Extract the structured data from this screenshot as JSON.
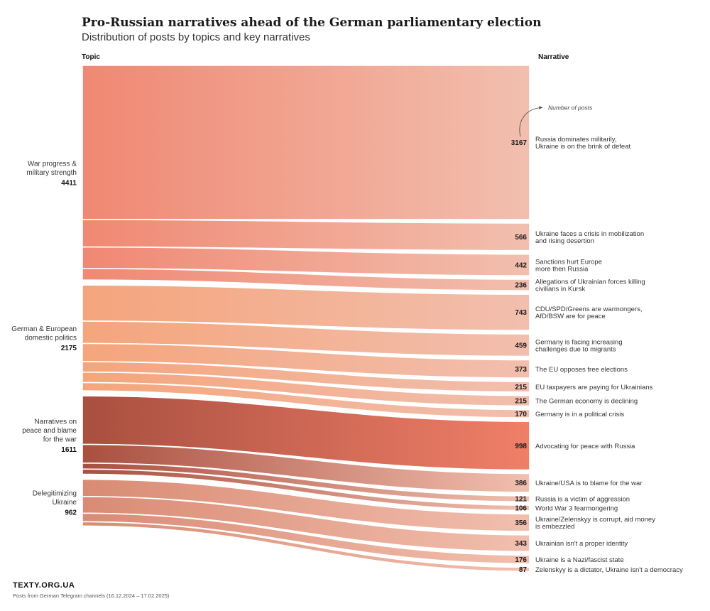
{
  "title": "Pro-Russian narratives ahead of the German parliamentary election",
  "subtitle": "Distribution of posts by topics and key narratives",
  "columns": {
    "left": "Topic",
    "right": "Narrative"
  },
  "annotation": "Number of posts",
  "footer": {
    "brand": "TEXTY.ORG.UA",
    "source": "Posts from German Telegram channels (16.12.2024 – 17.02.2025)"
  },
  "colors": {
    "end": "#f2bfae",
    "topics": [
      "#f08873",
      "#f4a57c",
      "#a94f40",
      "#d98b74"
    ],
    "peace_right": "#f07f68"
  },
  "chart_data": {
    "type": "sankey",
    "topics": [
      {
        "label_lines": [
          "War progress &",
          "military strength"
        ],
        "value": 4411
      },
      {
        "label_lines": [
          "German & European",
          "domestic politics"
        ],
        "value": 2175
      },
      {
        "label_lines": [
          "Narratives on",
          "peace and blame",
          "for the war"
        ],
        "value": 1611
      },
      {
        "label_lines": [
          "Delegitimizing",
          "Ukraine"
        ],
        "value": 962
      }
    ],
    "narratives": [
      {
        "topic": 0,
        "value": 3167,
        "label_lines": [
          "Russia dominates militarily,",
          "Ukraine is on the brink of defeat"
        ]
      },
      {
        "topic": 0,
        "value": 566,
        "label_lines": [
          "Ukraine faces a crisis in mobilization",
          "and rising desertion"
        ]
      },
      {
        "topic": 0,
        "value": 442,
        "label_lines": [
          "Sanctions hurt Europe",
          "more then Russia"
        ]
      },
      {
        "topic": 0,
        "value": 236,
        "label_lines": [
          "Allegations of Ukrainian forces killing",
          "civilians in Kursk"
        ]
      },
      {
        "topic": 1,
        "value": 743,
        "label_lines": [
          "CDU/SPD/Greens are warmongers,",
          "AfD/BSW are for peace"
        ]
      },
      {
        "topic": 1,
        "value": 459,
        "label_lines": [
          "Germany is facing increasing",
          "challenges due to migrants"
        ]
      },
      {
        "topic": 1,
        "value": 373,
        "label_lines": [
          "The EU opposes free elections"
        ]
      },
      {
        "topic": 1,
        "value": 215,
        "label_lines": [
          "EU taxpayers are paying for Ukrainians"
        ]
      },
      {
        "topic": 1,
        "value": 215,
        "label_lines": [
          "The German economy is declining"
        ]
      },
      {
        "topic": 1,
        "value": 170,
        "label_lines": [
          "Germany is in a political crisis"
        ]
      },
      {
        "topic": 2,
        "value": 998,
        "label_lines": [
          "Advocating for peace with Russia"
        ]
      },
      {
        "topic": 2,
        "value": 386,
        "label_lines": [
          "Ukraine/USA is to blame for the war"
        ]
      },
      {
        "topic": 2,
        "value": 121,
        "label_lines": [
          "Russia is a victim of aggression"
        ]
      },
      {
        "topic": 2,
        "value": 106,
        "label_lines": [
          "World War 3 fearmongering"
        ]
      },
      {
        "topic": 3,
        "value": 356,
        "label_lines": [
          "Ukraine/Zelenskyy is corrupt, aid money",
          "is embezzled"
        ]
      },
      {
        "topic": 3,
        "value": 343,
        "label_lines": [
          "Ukrainian isn't a proper identity"
        ]
      },
      {
        "topic": 3,
        "value": 176,
        "label_lines": [
          "Ukraine is a Nazi/fascist state"
        ]
      },
      {
        "topic": 3,
        "value": 87,
        "label_lines": [
          "Zelenskyy is a dictator, Ukraine isn't a democracy"
        ]
      }
    ]
  }
}
